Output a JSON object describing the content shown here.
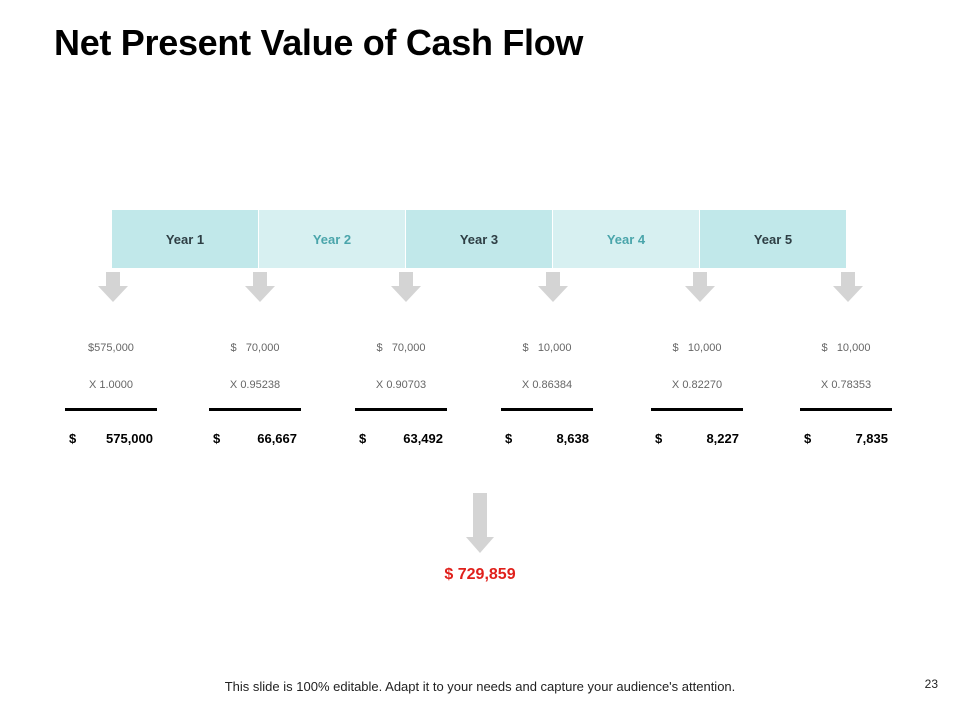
{
  "slide": {
    "title": "Net Present Value of Cash Flow",
    "footer": "This slide is 100% editable. Adapt it to your needs and capture your audience's attention.",
    "page_number": "23"
  },
  "years": [
    "Year 1",
    "Year 2",
    "Year 3",
    "Year 4",
    "Year 5"
  ],
  "columns": [
    {
      "cash_flow": "$575,000",
      "factor": "X 1.0000",
      "pv_symbol": "$",
      "pv_amount": "575,000"
    },
    {
      "cash_flow": "$   70,000",
      "factor": "X 0.95238",
      "pv_symbol": "$",
      "pv_amount": "66,667"
    },
    {
      "cash_flow": "$   70,000",
      "factor": "X 0.90703",
      "pv_symbol": "$",
      "pv_amount": "63,492"
    },
    {
      "cash_flow": "$   10,000",
      "factor": "X 0.86384",
      "pv_symbol": "$",
      "pv_amount": "8,638"
    },
    {
      "cash_flow": "$   10,000",
      "factor": "X 0.82270",
      "pv_symbol": "$",
      "pv_amount": "8,227"
    },
    {
      "cash_flow": "$   10,000",
      "factor": "X 0.78353",
      "pv_symbol": "$",
      "pv_amount": "7,835"
    }
  ],
  "total": {
    "value": "$ 729,859",
    "color": "#e0201b"
  },
  "colors": {
    "year_dark": "#c1e8ea",
    "year_light": "#d7f0f1",
    "year_light_text": "#4aa5ab",
    "arrow": "#d4d4d4"
  }
}
